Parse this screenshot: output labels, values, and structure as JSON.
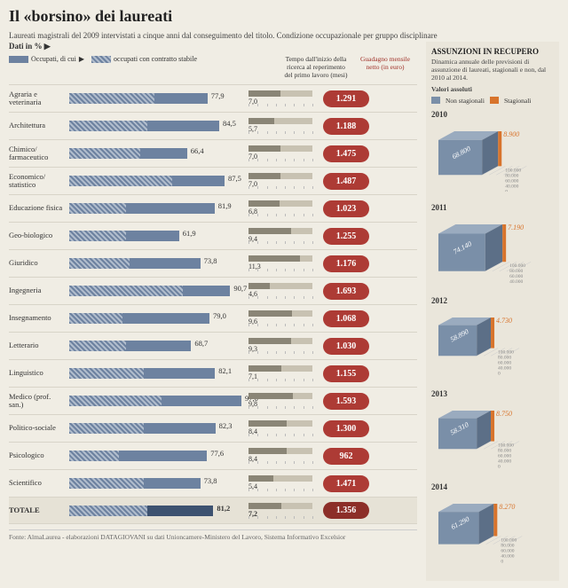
{
  "title": "Il «borsino» dei laureati",
  "subtitle": "Laureati magistrali del 2009 intervistati a cinque anni dal conseguimento del titolo. Condizione occupazionale per gruppo disciplinare",
  "dati_label": "Dati in %",
  "legend": {
    "occupati": "Occupati, di cui",
    "stabile": "occupati con contratto stabile",
    "arrow": "▶"
  },
  "col_headers": {
    "tempo": "Tempo dall'inizio della ricerca al reperimento del primo lavoro (mesi)",
    "salary": "Guadagno mensile netto (in euro)"
  },
  "colors": {
    "bar_solid": "#6d82a0",
    "bar_hatch1": "#6d82a0",
    "bar_hatch2": "#b0bccc",
    "badge": "#ad3b35",
    "badge_text": "#ffffff",
    "orange": "#d8742c",
    "cube_face": "#7a8fa8",
    "cube_top": "#9aabbf",
    "cube_side": "#5c6f87"
  },
  "bar_max": 100,
  "tempo_max": 14,
  "rows": [
    {
      "label": "Agraria e veterinaria",
      "occ": 77.9,
      "stab": 48,
      "tempo": 7.0,
      "salary": "1.291"
    },
    {
      "label": "Architettura",
      "occ": 84.5,
      "stab": 44,
      "tempo": 5.7,
      "salary": "1.188"
    },
    {
      "label": "Chimico/ farmaceutico",
      "occ": 66.4,
      "stab": 40,
      "tempo": 7.0,
      "salary": "1.475"
    },
    {
      "label": "Economico/ statistico",
      "occ": 87.5,
      "stab": 58,
      "tempo": 7.0,
      "salary": "1.487"
    },
    {
      "label": "Educazione fisica",
      "occ": 81.9,
      "stab": 32,
      "tempo": 6.8,
      "salary": "1.023"
    },
    {
      "label": "Geo-biologico",
      "occ": 61.9,
      "stab": 32,
      "tempo": 9.4,
      "salary": "1.255"
    },
    {
      "label": "Giuridico",
      "occ": 73.8,
      "stab": 34,
      "tempo": 11.3,
      "salary": "1.176"
    },
    {
      "label": "Ingegneria",
      "occ": 90.7,
      "stab": 64,
      "tempo": 4.6,
      "salary": "1.693"
    },
    {
      "label": "Insegnamento",
      "occ": 79.0,
      "stab": 30,
      "tempo": 9.6,
      "salary": "1.068"
    },
    {
      "label": "Letterario",
      "occ": 68.7,
      "stab": 32,
      "tempo": 9.3,
      "salary": "1.030"
    },
    {
      "label": "Linguistico",
      "occ": 82.1,
      "stab": 42,
      "tempo": 7.1,
      "salary": "1.155"
    },
    {
      "label": "Medico (prof. san.)",
      "occ": 97.0,
      "stab": 52,
      "tempo": 9.8,
      "salary": "1.593"
    },
    {
      "label": "Politico-sociale",
      "occ": 82.3,
      "stab": 42,
      "tempo": 8.4,
      "salary": "1.300"
    },
    {
      "label": "Psicologico",
      "occ": 77.6,
      "stab": 28,
      "tempo": 8.4,
      "salary": "962"
    },
    {
      "label": "Scientifico",
      "occ": 73.8,
      "stab": 42,
      "tempo": 5.4,
      "salary": "1.471"
    }
  ],
  "total": {
    "label": "TOTALE",
    "occ": 81.2,
    "stab": 44,
    "tempo": 7.2,
    "salary": "1.356"
  },
  "source": "Fonte: AlmaLaurea - elaborazioni DATAGIOVANI su dati Unioncamere-Ministero del Lavoro, Sistema Informativo Excelsior",
  "right": {
    "title": "ASSUNZIONI IN RECUPERO",
    "sub": "Dinamica annuale delle previsioni di assunzione di laureati, stagionali e non, dal 2010 al 2014.",
    "valori": "Valori assoluti",
    "legend": {
      "non": "Non stagionali",
      "stag": "Stagionali"
    },
    "axis_ticks": [
      "0",
      "40.000",
      "60.000",
      "80.000",
      "100.000"
    ],
    "years": [
      {
        "year": "2010",
        "non": "68.800",
        "stag": "8.900",
        "size": 0.82
      },
      {
        "year": "2011",
        "non": "74.140",
        "stag": "7.190",
        "size": 0.88
      },
      {
        "year": "2012",
        "non": "58.890",
        "stag": "4.730",
        "size": 0.72
      },
      {
        "year": "2013",
        "non": "58.310",
        "stag": "8.750",
        "size": 0.72
      },
      {
        "year": "2014",
        "non": "61.290",
        "stag": "8.270",
        "size": 0.76
      }
    ]
  }
}
